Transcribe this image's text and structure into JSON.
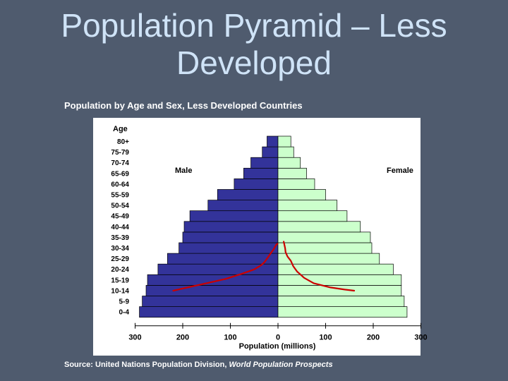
{
  "slide": {
    "title": "Population Pyramid – Less Developed",
    "subtitle": "Population by Age and Sex, Less Developed Countries",
    "source_prefix": "Source: United Nations Population Division, ",
    "source_publication": "World Population Prospects"
  },
  "chart_data": {
    "type": "bar",
    "orientation": "horizontal-pyramid",
    "categories": [
      "0-4",
      "5-9",
      "10-14",
      "15-19",
      "20-24",
      "25-29",
      "30-34",
      "35-39",
      "40-44",
      "45-49",
      "50-54",
      "55-59",
      "60-64",
      "65-69",
      "70-74",
      "75-79",
      "80+"
    ],
    "series": [
      {
        "name": "Male",
        "values": [
          291,
          285,
          277,
          274,
          252,
          232,
          208,
          200,
          197,
          185,
          147,
          127,
          92,
          72,
          57,
          33,
          23
        ],
        "color": "#33339a"
      },
      {
        "name": "Female",
        "values": [
          271,
          265,
          259,
          259,
          242,
          213,
          197,
          194,
          173,
          145,
          124,
          100,
          77,
          60,
          47,
          33,
          27
        ],
        "color": "#ccffcc"
      }
    ],
    "overlay_curves": [
      {
        "side": "Male",
        "points": [
          [
            220,
            12.5
          ],
          [
            200,
            13.5
          ],
          [
            160,
            15.5
          ],
          [
            110,
            18.0
          ],
          [
            75,
            20.5
          ],
          [
            50,
            22.5
          ],
          [
            35,
            24.5
          ],
          [
            28,
            26.0
          ],
          [
            20,
            28.5
          ],
          [
            14,
            30.5
          ],
          [
            9,
            32.0
          ],
          [
            4,
            34.0
          ],
          [
            1,
            34.5
          ]
        ],
        "color": "#cc0000"
      },
      {
        "side": "Female",
        "points": [
          [
            160,
            12.5
          ],
          [
            140,
            13.0
          ],
          [
            110,
            14.0
          ],
          [
            75,
            16.0
          ],
          [
            55,
            18.5
          ],
          [
            40,
            21.5
          ],
          [
            32,
            24.0
          ],
          [
            27,
            26.5
          ],
          [
            20,
            28.5
          ],
          [
            16,
            30.5
          ],
          [
            15,
            32.5
          ],
          [
            13,
            34.5
          ],
          [
            12,
            35.5
          ]
        ],
        "color": "#cc0000"
      }
    ],
    "ylabel": "Age",
    "xlabel": "Population (millions)",
    "x_ticks": [
      "300",
      "200",
      "100",
      "0",
      "100",
      "200",
      "300"
    ],
    "x_tick_values": [
      -300,
      -200,
      -100,
      0,
      100,
      200,
      300
    ],
    "xlim": [
      -300,
      300
    ],
    "left_label": "Male",
    "right_label": "Female",
    "grid": false
  }
}
